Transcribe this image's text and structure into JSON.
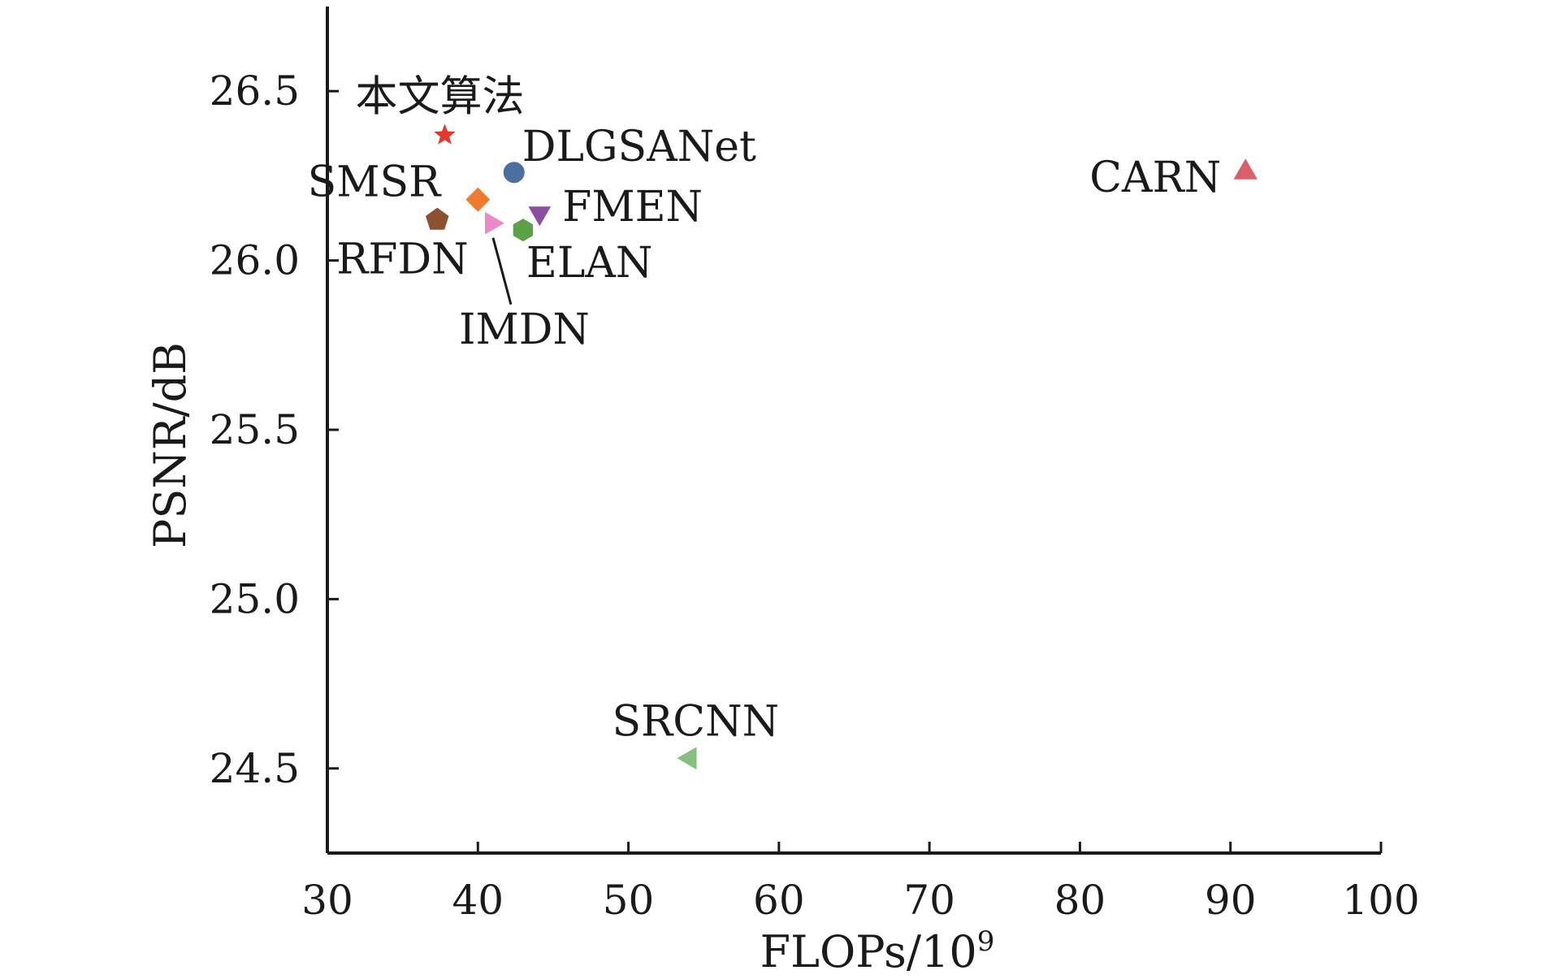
{
  "chart_data": {
    "type": "scatter",
    "title": "",
    "xlabel": "FLOPs/10",
    "xlabel_sup": "9",
    "ylabel": "PSNR/dB",
    "xlim": [
      30,
      100
    ],
    "ylim": [
      24.25,
      26.75
    ],
    "xticks": [
      30,
      40,
      50,
      60,
      70,
      80,
      90,
      100
    ],
    "xtick_labels": [
      "30",
      "40",
      "50",
      "60",
      "70",
      "80",
      "90",
      "100"
    ],
    "yticks": [
      24.5,
      25.0,
      25.5,
      26.0,
      26.5
    ],
    "ytick_labels": [
      "24.5",
      "25.0",
      "25.5",
      "26.0",
      "26.5"
    ],
    "grid": false,
    "legend": "none",
    "points": [
      {
        "label": "本文算法",
        "x": 37.8,
        "y": 26.37,
        "marker": "star",
        "color": "#e03a2f"
      },
      {
        "label": "DLGSANet",
        "x": 42.4,
        "y": 26.26,
        "marker": "circle",
        "color": "#4a6fa0"
      },
      {
        "label": "SMSR",
        "x": 40.0,
        "y": 26.18,
        "marker": "diamond",
        "color": "#ef7a30"
      },
      {
        "label": "FMEN",
        "x": 44.1,
        "y": 26.14,
        "marker": "triangle-down",
        "color": "#8a4f9e"
      },
      {
        "label": "RFDN",
        "x": 37.3,
        "y": 26.12,
        "marker": "pentagon",
        "color": "#8c5230"
      },
      {
        "label": "IMDN",
        "x": 40.9,
        "y": 26.11,
        "marker": "triangle-right",
        "color": "#e98bc4"
      },
      {
        "label": "ELAN",
        "x": 43.0,
        "y": 26.09,
        "marker": "hexagon",
        "color": "#5aa147"
      },
      {
        "label": "CARN",
        "x": 91.0,
        "y": 26.26,
        "marker": "triangle-up",
        "color": "#d9606a"
      },
      {
        "label": "SRCNN",
        "x": 54.1,
        "y": 24.53,
        "marker": "triangle-left",
        "color": "#86c07f"
      }
    ]
  }
}
